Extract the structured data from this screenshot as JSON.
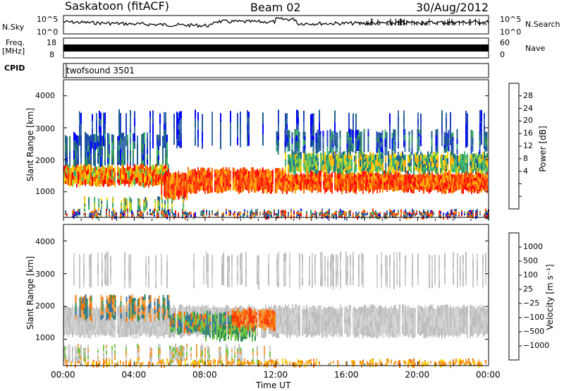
{
  "header": {
    "title": "Saskatoon (fitACF)",
    "beam": "Beam 02",
    "date": "30/Aug/2012"
  },
  "chart_data": [
    {
      "type": "line",
      "name_label": "N.Sky",
      "right_label": "N.Search",
      "y_ticks_left": [
        "10^5",
        "10^0"
      ],
      "y_ticks_right": [
        "10^5",
        "10^0"
      ]
    },
    {
      "type": "bar",
      "name_label": "Freq.",
      "unit_label": "[MHz]",
      "right_label": "Nave",
      "y_ticks_left": [
        "18",
        "8"
      ],
      "y_ticks_right": [
        "60",
        "0"
      ]
    },
    {
      "type": "table",
      "name_label": "CPID",
      "program": "twofsound 3501"
    },
    {
      "type": "heatmap",
      "ylabel": "Slant Range [km]",
      "ylim": [
        200,
        4500
      ],
      "y_ticks": [
        "4000",
        "3000",
        "2000",
        "1000"
      ],
      "colorbar_label": "Power [dB]",
      "colorbar_ticks": [
        "28",
        "24",
        "20",
        "16",
        "12",
        "8",
        "4"
      ],
      "colorbar_colors": [
        "#ff0000",
        "#ff6a00",
        "#ffa500",
        "#ffd700",
        "#9acd32",
        "#3cb371",
        "#2e8b57",
        "#1e5f8c",
        "#2040c0",
        "#0000ff"
      ]
    },
    {
      "type": "heatmap",
      "ylabel": "Slant Range [km]",
      "ylim": [
        200,
        4500
      ],
      "y_ticks": [
        "4000",
        "3000",
        "2000",
        "1000"
      ],
      "colorbar_label": "Velocity [m s⁻¹]",
      "colorbar_ticks": [
        "1000",
        "500",
        "100",
        "25",
        "−25",
        "−100",
        "−500",
        "−1000"
      ],
      "colorbar_colors": [
        "#2040b0",
        "#3070a0",
        "#2e8b57",
        "#70c840",
        "#c8c8c8",
        "#f0a040",
        "#ff7000",
        "#ff3000",
        "#ff0000"
      ]
    }
  ],
  "time_axis": {
    "label": "Time UT",
    "ticks": [
      "00:00",
      "04:00",
      "08:00",
      "12:00",
      "16:00",
      "20:00",
      "00:00"
    ]
  }
}
